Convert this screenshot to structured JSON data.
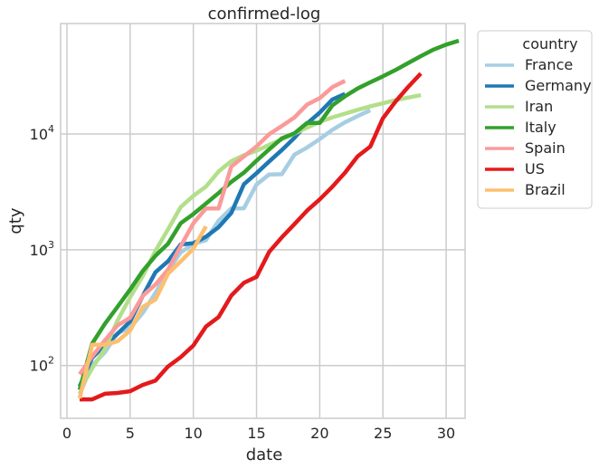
{
  "chart_data": {
    "type": "line",
    "title": "confirmed-log",
    "xlabel": "date",
    "ylabel": "qty",
    "xlim": [
      -0.5,
      31.5
    ],
    "ylim": [
      35,
      90000
    ],
    "yscale": "log",
    "grid": true,
    "x_ticks": [
      0,
      5,
      10,
      15,
      20,
      25,
      30
    ],
    "x_tick_labels": [
      "0",
      "5",
      "10",
      "15",
      "20",
      "25",
      "30"
    ],
    "y_ticks": [
      100,
      1000,
      10000
    ],
    "y_tick_labels": [
      {
        "base": "10",
        "exp": "2"
      },
      {
        "base": "10",
        "exp": "3"
      },
      {
        "base": "10",
        "exp": "4"
      }
    ],
    "legend": {
      "title": "country",
      "position": "outside-right-top"
    },
    "series": [
      {
        "name": "France",
        "color": "#a6cee3",
        "x": [
          1,
          2,
          3,
          4,
          5,
          6,
          7,
          8,
          9,
          10,
          11,
          12,
          13,
          14,
          15,
          16,
          17,
          18,
          19,
          20,
          21,
          22,
          23,
          24
        ],
        "y": [
          57,
          100,
          130,
          191,
          212,
          285,
          423,
          653,
          949,
          1126,
          1209,
          1784,
          2281,
          2281,
          3661,
          4469,
          4499,
          6633,
          7652,
          9043,
          10871,
          12612,
          14282,
          16018
        ]
      },
      {
        "name": "Germany",
        "color": "#1f78b4",
        "x": [
          1,
          2,
          3,
          4,
          5,
          6,
          7,
          8,
          9,
          10,
          11,
          12,
          13,
          14,
          15,
          16,
          17,
          18,
          19,
          20,
          21,
          22
        ],
        "y": [
          66,
          117,
          150,
          188,
          240,
          400,
          639,
          795,
          1112,
          1139,
          1296,
          1567,
          2078,
          3675,
          4585,
          5795,
          7272,
          9257,
          12327,
          15320,
          19848,
          22213
        ]
      },
      {
        "name": "Iran",
        "color": "#b2df8a",
        "x": [
          1,
          2,
          3,
          4,
          5,
          6,
          7,
          8,
          9,
          10,
          11,
          12,
          13,
          14,
          15,
          16,
          17,
          18,
          19,
          20,
          21,
          22,
          23,
          24,
          25,
          26,
          27,
          28
        ],
        "y": [
          61,
          95,
          139,
          245,
          388,
          593,
          978,
          1501,
          2336,
          2922,
          3513,
          4747,
          5823,
          6566,
          7161,
          8042,
          9000,
          10075,
          11364,
          12729,
          13938,
          14991,
          16169,
          17361,
          18407,
          19644,
          20610,
          21638
        ]
      },
      {
        "name": "Italy",
        "color": "#33a02c",
        "x": [
          1,
          2,
          3,
          4,
          5,
          6,
          7,
          8,
          9,
          10,
          11,
          12,
          13,
          14,
          15,
          16,
          17,
          18,
          19,
          20,
          21,
          22,
          23,
          24,
          25,
          26,
          27,
          28,
          29,
          30,
          31
        ],
        "y": [
          62,
          155,
          229,
          322,
          453,
          655,
          888,
          1128,
          1694,
          2036,
          2502,
          3089,
          3858,
          4636,
          5883,
          7375,
          9172,
          10149,
          12462,
          12462,
          17660,
          21157,
          24747,
          27980,
          31506,
          35713,
          41035,
          47021,
          53578,
          59138,
          63927
        ]
      },
      {
        "name": "Spain",
        "color": "#fb9a99",
        "x": [
          1,
          2,
          3,
          4,
          5,
          6,
          7,
          8,
          9,
          10,
          11,
          12,
          13,
          14,
          15,
          16,
          17,
          18,
          19,
          20,
          21,
          22
        ],
        "y": [
          84,
          120,
          165,
          222,
          259,
          400,
          500,
          673,
          1073,
          1695,
          2277,
          2277,
          5232,
          6391,
          7798,
          9942,
          11748,
          13910,
          17963,
          20410,
          25374,
          28768
        ]
      },
      {
        "name": "US",
        "color": "#e31a1c",
        "x": [
          1,
          2,
          3,
          4,
          5,
          6,
          7,
          8,
          9,
          10,
          11,
          12,
          13,
          14,
          15,
          16,
          17,
          18,
          19,
          20,
          21,
          22,
          23,
          24,
          25,
          26,
          27,
          28
        ],
        "y": [
          51,
          51,
          57,
          58,
          60,
          68,
          74,
          98,
          118,
          149,
          217,
          262,
          402,
          518,
          583,
          959,
          1281,
          1663,
          2179,
          2727,
          3499,
          4632,
          6421,
          7786,
          13680,
          19101,
          25493,
          33276
        ]
      },
      {
        "name": "Brazil",
        "color": "#fdbf6f",
        "x": [
          1,
          2,
          3,
          4,
          5,
          6,
          7,
          8,
          9,
          10,
          11
        ],
        "y": [
          52,
          151,
          151,
          162,
          200,
          321,
          372,
          621,
          793,
          1021,
          1593
        ]
      }
    ]
  }
}
